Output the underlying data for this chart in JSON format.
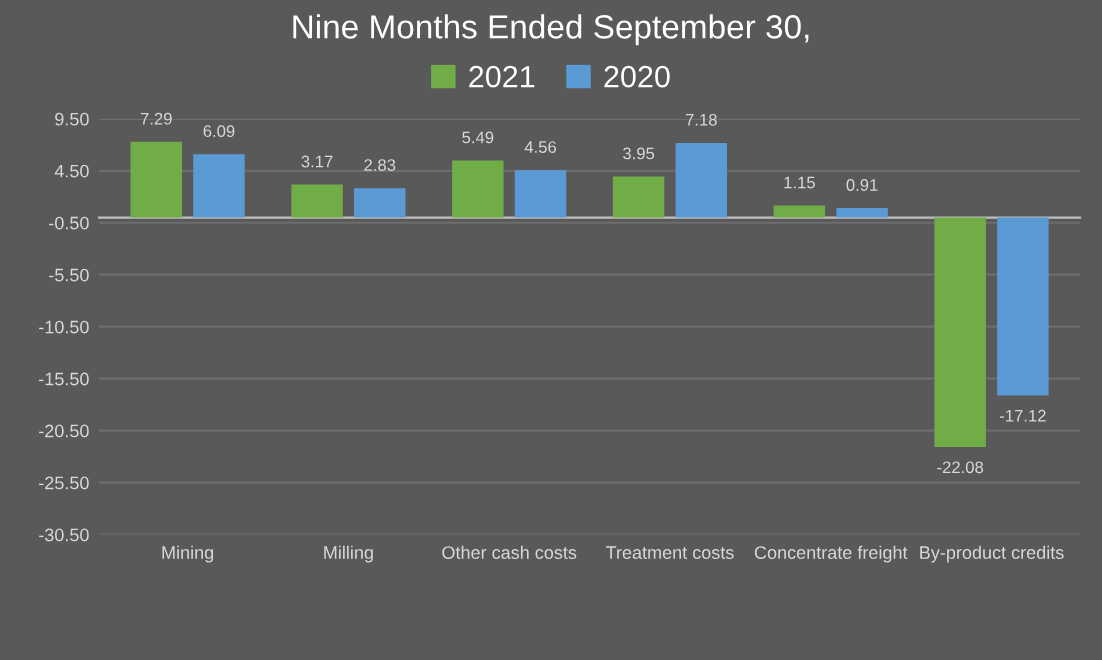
{
  "chart_data": {
    "type": "bar",
    "title": "Nine Months Ended September 30,",
    "categories": [
      "Mining",
      "Milling",
      "Other cash costs",
      "Treatment costs",
      "Concentrate freight",
      "By-product credits"
    ],
    "series": [
      {
        "name": "2021",
        "color": "#70ad47",
        "values": [
          7.29,
          3.17,
          5.49,
          3.95,
          1.15,
          -22.08
        ]
      },
      {
        "name": "2020",
        "color": "#5b9bd5",
        "values": [
          6.09,
          2.83,
          4.56,
          7.18,
          0.91,
          -17.12
        ]
      }
    ],
    "ylim": [
      -30.5,
      9.5
    ],
    "yticks": [
      {
        "value": 9.5,
        "label": "9.50"
      },
      {
        "value": 4.5,
        "label": "4.50"
      },
      {
        "value": -0.5,
        "label": "-0.50"
      },
      {
        "value": -5.5,
        "label": "-5.50"
      },
      {
        "value": -10.5,
        "label": "-10.50"
      },
      {
        "value": -15.5,
        "label": "-15.50"
      },
      {
        "value": -20.5,
        "label": "-20.50"
      },
      {
        "value": -25.5,
        "label": "-25.50"
      },
      {
        "value": -30.5,
        "label": "-30.50"
      }
    ],
    "grid": "y",
    "legend": "top",
    "data_labels": true
  }
}
